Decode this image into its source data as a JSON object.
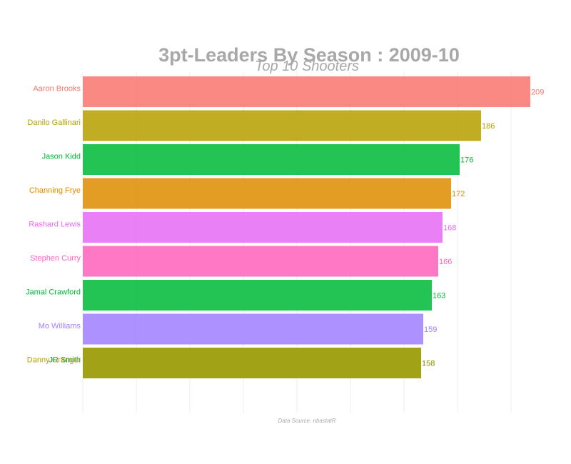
{
  "chart_data": {
    "type": "bar",
    "orientation": "horizontal",
    "title": "3pt-Leaders By Season : 2009-10",
    "subtitle": "Top 10 Shooters",
    "caption": "Data Source: nbastatR",
    "xlabel": "",
    "ylabel": "",
    "xlim": [
      0,
      210
    ],
    "grid": "vertical-only",
    "legend": "none",
    "bars": [
      {
        "name": "Aaron Brooks",
        "value": 209,
        "color": "#F8766D"
      },
      {
        "name": "Danilo Gallinari",
        "value": 186,
        "color": "#B79F00"
      },
      {
        "name": "Jason Kidd",
        "value": 176,
        "color": "#00BA38"
      },
      {
        "name": "Channing Frye",
        "value": 172,
        "color": "#DE8C00"
      },
      {
        "name": "Rashard Lewis",
        "value": 168,
        "color": "#E76BF3"
      },
      {
        "name": "Stephen Curry",
        "value": 166,
        "color": "#FF62BC"
      },
      {
        "name": "Jamal Crawford",
        "value": 163,
        "color": "#00BA38"
      },
      {
        "name": "Mo Williams",
        "value": 159,
        "color": "#9F7FFF"
      },
      {
        "name": "JR Smith",
        "value": 158,
        "color": "#00A08A"
      },
      {
        "name": "Danny Granger",
        "value": 158,
        "color": "#B79F00"
      }
    ]
  }
}
